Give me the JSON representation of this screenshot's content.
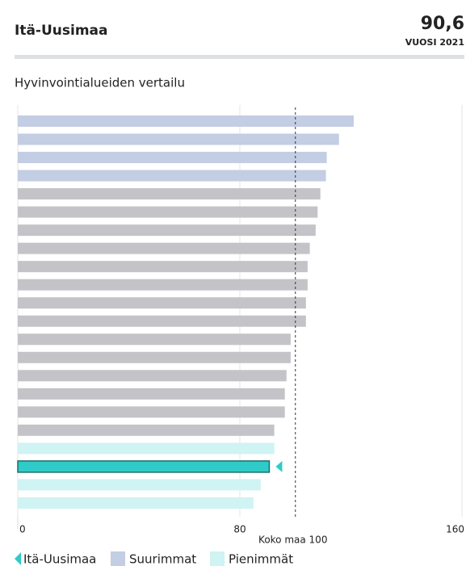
{
  "header": {
    "title": "Itä-Uusimaa",
    "value": "90,6",
    "year": "VUOSI 2021"
  },
  "chart_data": {
    "type": "bar",
    "orientation": "horizontal",
    "title": "Hyvinvointialueiden vertailu",
    "values": [
      121,
      115.7,
      111.3,
      111,
      109,
      108,
      107.3,
      105.2,
      104.4,
      104.4,
      103.8,
      103.8,
      98.3,
      98.3,
      96.8,
      96.2,
      96.2,
      92.4,
      92.4,
      90.6,
      87.5,
      84.9
    ],
    "colors": [
      "#c3cde3",
      "#c3cde3",
      "#c3cde3",
      "#c3cde3",
      "#c4c3c8",
      "#c4c3c8",
      "#c4c3c8",
      "#c4c3c8",
      "#c4c3c8",
      "#c4c3c8",
      "#c4c3c8",
      "#c4c3c8",
      "#c4c3c8",
      "#c4c3c8",
      "#c4c3c8",
      "#c4c3c8",
      "#c4c3c8",
      "#c4c3c8",
      "#d0f3f3",
      "#2ecbc8",
      "#d0f3f3",
      "#d0f3f3"
    ],
    "xlim": [
      0,
      160
    ],
    "xticks": [
      0,
      80,
      160
    ],
    "reference": {
      "value": 100,
      "label": "Koko maa 100"
    },
    "legend": [
      {
        "name": "Itä-Uusimaa",
        "color": "#2ecbc8"
      },
      {
        "name": "Suurimmat",
        "color": "#c3cde3"
      },
      {
        "name": "Pienimmät",
        "color": "#d0f3f3"
      }
    ]
  }
}
